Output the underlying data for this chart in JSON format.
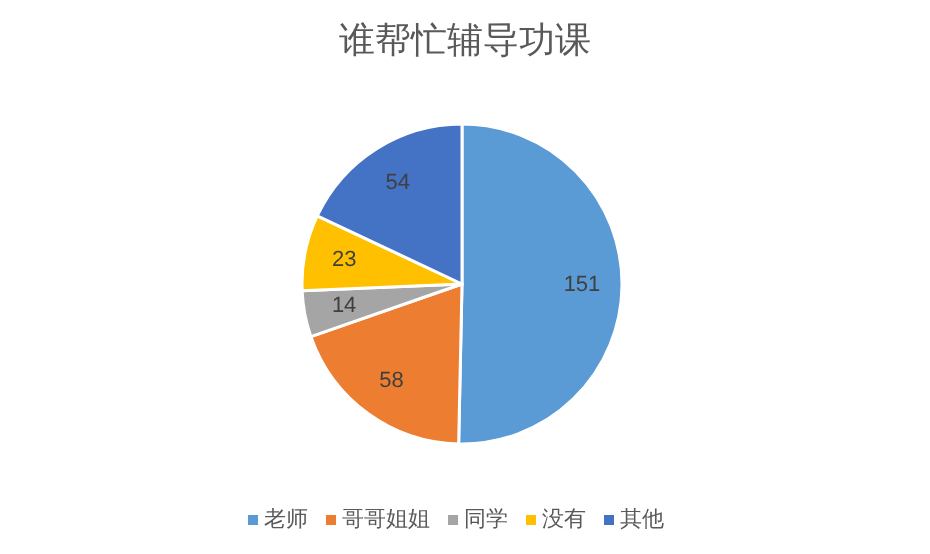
{
  "chart_data": {
    "type": "pie",
    "title": "谁帮忙辅导功课",
    "categories": [
      "老师",
      "哥哥姐姐",
      "同学",
      "没有",
      "其他"
    ],
    "values": [
      151,
      58,
      14,
      23,
      54
    ],
    "colors": [
      "#5b9bd5",
      "#ed7d31",
      "#a5a5a5",
      "#ffc000",
      "#4472c4"
    ],
    "data_labels": true,
    "legend": "bottom"
  }
}
